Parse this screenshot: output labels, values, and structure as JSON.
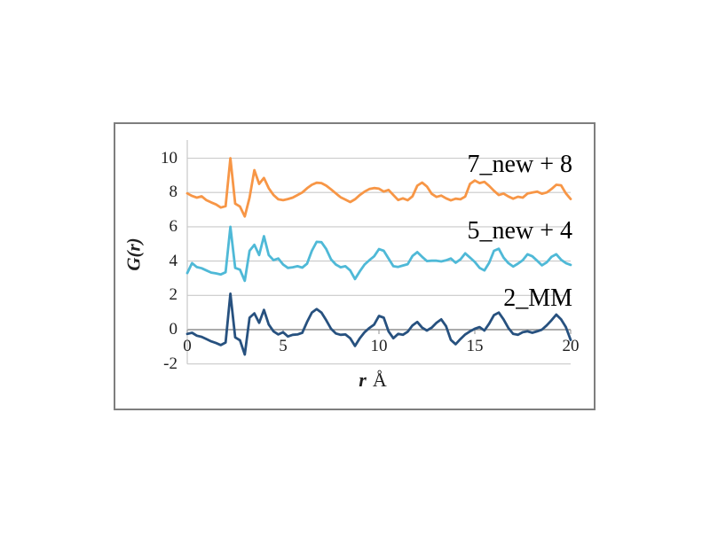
{
  "figure": {
    "background": "#ffffff",
    "frame_border_color": "#7e7e7e"
  },
  "chart_data": {
    "type": "line",
    "title": "",
    "xlabel": "r Å",
    "xlabel_parts": {
      "symbol": "r",
      "unit": "Å"
    },
    "ylabel": "G(r)",
    "xlim": [
      0,
      20
    ],
    "ylim": [
      -2,
      11
    ],
    "x_ticks": [
      0,
      5,
      10,
      15,
      20
    ],
    "y_ticks": [
      10,
      8,
      6,
      4,
      2,
      0,
      -2
    ],
    "grid": "horizontal gridlines at every y tick, no vertical gridlines",
    "gridline_color": "#c9c9c9",
    "axis_color": "#8f8f8f",
    "legend_position": "labels beside curves, right side",
    "x_start": 0,
    "x_step": 0.25,
    "values_include_offset": true,
    "series": [
      {
        "name": "7_new",
        "label": "7_new + 8",
        "color": "#F79646",
        "offset": 8,
        "values": [
          7.95,
          7.8,
          7.7,
          7.78,
          7.55,
          7.42,
          7.3,
          7.12,
          7.2,
          10.0,
          7.35,
          7.18,
          6.6,
          7.7,
          9.3,
          8.5,
          8.85,
          8.25,
          7.85,
          7.6,
          7.55,
          7.62,
          7.7,
          7.85,
          8.0,
          8.25,
          8.45,
          8.57,
          8.55,
          8.4,
          8.18,
          7.95,
          7.72,
          7.58,
          7.44,
          7.6,
          7.85,
          8.05,
          8.2,
          8.26,
          8.22,
          8.05,
          8.15,
          7.85,
          7.56,
          7.66,
          7.55,
          7.78,
          8.4,
          8.58,
          8.35,
          7.92,
          7.74,
          7.82,
          7.66,
          7.54,
          7.64,
          7.6,
          7.76,
          8.5,
          8.7,
          8.55,
          8.62,
          8.38,
          8.1,
          7.85,
          7.94,
          7.77,
          7.64,
          7.75,
          7.7,
          7.94,
          8.0,
          8.05,
          7.93,
          8.0,
          8.2,
          8.45,
          8.42,
          7.95,
          7.62
        ]
      },
      {
        "name": "5_new",
        "label": "5_new + 4",
        "color": "#4FB9D7",
        "offset": 4,
        "values": [
          3.3,
          3.88,
          3.65,
          3.58,
          3.45,
          3.33,
          3.28,
          3.22,
          3.35,
          6.0,
          3.6,
          3.5,
          2.85,
          4.6,
          4.95,
          4.35,
          5.45,
          4.35,
          4.05,
          4.15,
          3.8,
          3.6,
          3.64,
          3.7,
          3.62,
          3.85,
          4.6,
          5.12,
          5.1,
          4.7,
          4.1,
          3.8,
          3.64,
          3.7,
          3.45,
          2.95,
          3.4,
          3.8,
          4.05,
          4.28,
          4.7,
          4.6,
          4.15,
          3.7,
          3.66,
          3.74,
          3.82,
          4.3,
          4.52,
          4.25,
          4.0,
          4.02,
          4.02,
          3.98,
          4.04,
          4.15,
          3.9,
          4.1,
          4.45,
          4.2,
          3.95,
          3.6,
          3.45,
          3.9,
          4.6,
          4.72,
          4.2,
          3.88,
          3.68,
          3.85,
          4.05,
          4.4,
          4.28,
          4.02,
          3.75,
          3.92,
          4.25,
          4.4,
          4.08,
          3.88,
          3.78
        ]
      },
      {
        "name": "2_MM",
        "label": "2_MM",
        "color": "#27517F",
        "offset": 0,
        "values": [
          -0.25,
          -0.18,
          -0.35,
          -0.42,
          -0.55,
          -0.68,
          -0.78,
          -0.9,
          -0.75,
          2.1,
          -0.45,
          -0.62,
          -1.45,
          0.7,
          0.95,
          0.4,
          1.15,
          0.3,
          -0.1,
          -0.28,
          -0.15,
          -0.4,
          -0.3,
          -0.28,
          -0.18,
          0.45,
          1.0,
          1.2,
          1.0,
          0.55,
          0.05,
          -0.22,
          -0.3,
          -0.28,
          -0.5,
          -0.95,
          -0.5,
          -0.15,
          0.1,
          0.3,
          0.8,
          0.7,
          -0.1,
          -0.5,
          -0.25,
          -0.3,
          -0.12,
          0.25,
          0.45,
          0.12,
          -0.05,
          0.12,
          0.4,
          0.6,
          0.2,
          -0.6,
          -0.85,
          -0.55,
          -0.28,
          -0.1,
          0.05,
          0.15,
          -0.05,
          0.35,
          0.85,
          1.0,
          0.6,
          0.1,
          -0.25,
          -0.3,
          -0.15,
          -0.1,
          -0.18,
          -0.1,
          0.0,
          0.25,
          0.55,
          0.88,
          0.6,
          0.15,
          -0.6
        ]
      }
    ]
  }
}
